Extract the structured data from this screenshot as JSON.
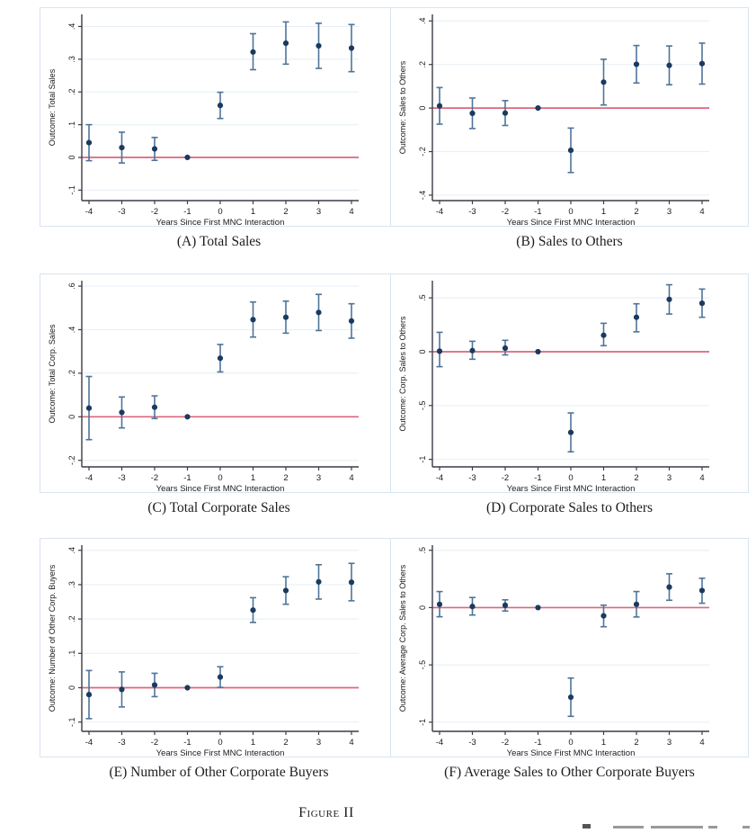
{
  "figure": {
    "label": "Figure II"
  },
  "colors": {
    "marker": "#1b3a5f",
    "ci_bar": "#4e7499",
    "zero_refline": "#d8687c",
    "gridline": "#e9f1f6",
    "panel_border": "#d9e4ef",
    "axis": "#3c3c46",
    "text": "#1a1a1a"
  },
  "chart_data": [
    {
      "id": "A",
      "type": "scatter",
      "caption": "(A) Total Sales",
      "ylabel": "Outcome: Total Sales",
      "xlabel": "Years Since First MNC Interaction",
      "grid": true,
      "legend": "none",
      "x": [
        -4,
        -3,
        -2,
        -1,
        0,
        1,
        2,
        3,
        4
      ],
      "xtick_labels": [
        "-4",
        "-3",
        "-2",
        "-1",
        "0",
        "1",
        "2",
        "3",
        "4"
      ],
      "estimates": [
        0.045,
        0.03,
        0.026,
        0,
        0.159,
        0.322,
        0.349,
        0.341,
        0.334
      ],
      "ci_low": [
        -0.01,
        -0.017,
        -0.009,
        0,
        0.119,
        0.268,
        0.285,
        0.272,
        0.262
      ],
      "ci_high": [
        0.1,
        0.077,
        0.061,
        0,
        0.199,
        0.378,
        0.414,
        0.41,
        0.406
      ],
      "omitted_period": -1,
      "refline_y": 0,
      "yticks": [
        -0.1,
        0,
        0.1,
        0.2,
        0.3,
        0.4
      ],
      "ytick_labels": [
        "-.1",
        "0",
        ".1",
        ".2",
        ".3",
        ".4"
      ],
      "ylim": [
        -0.132,
        0.437
      ]
    },
    {
      "id": "B",
      "type": "scatter",
      "caption": "(B) Sales to Others",
      "ylabel": "Outcome: Sales to Others",
      "xlabel": "Years Since First MNC Interaction",
      "grid": true,
      "legend": "none",
      "x": [
        -4,
        -3,
        -2,
        -1,
        0,
        1,
        2,
        3,
        4
      ],
      "xtick_labels": [
        "-4",
        "-3",
        "-2",
        "-1",
        "0",
        "1",
        "2",
        "3",
        "4"
      ],
      "estimates": [
        0.01,
        -0.024,
        -0.023,
        0,
        -0.194,
        0.119,
        0.201,
        0.196,
        0.204
      ],
      "ci_low": [
        -0.074,
        -0.094,
        -0.08,
        0,
        -0.296,
        0.014,
        0.115,
        0.107,
        0.11
      ],
      "ci_high": [
        0.094,
        0.046,
        0.034,
        0,
        -0.092,
        0.224,
        0.287,
        0.285,
        0.298
      ],
      "omitted_period": -1,
      "refline_y": 0,
      "yticks": [
        -0.4,
        -0.2,
        0,
        0.2,
        0.4
      ],
      "ytick_labels": [
        "-.4",
        "-.2",
        "0",
        ".2",
        ".4"
      ],
      "ylim": [
        -0.425,
        0.43
      ]
    },
    {
      "id": "C",
      "type": "scatter",
      "caption": "(C) Total Corporate Sales",
      "ylabel": "Outcome: Total Corp. Sales",
      "xlabel": "Years Since First MNC Interaction",
      "grid": true,
      "legend": "none",
      "x": [
        -4,
        -3,
        -2,
        -1,
        0,
        1,
        2,
        3,
        4
      ],
      "xtick_labels": [
        "-4",
        "-3",
        "-2",
        "-1",
        "0",
        "1",
        "2",
        "3",
        "4"
      ],
      "estimates": [
        0.04,
        0.02,
        0.044,
        0,
        0.269,
        0.446,
        0.457,
        0.479,
        0.44
      ],
      "ci_low": [
        -0.105,
        -0.051,
        -0.008,
        0,
        0.206,
        0.366,
        0.384,
        0.396,
        0.361
      ],
      "ci_high": [
        0.185,
        0.091,
        0.096,
        0,
        0.332,
        0.527,
        0.531,
        0.562,
        0.519
      ],
      "omitted_period": -1,
      "refline_y": 0,
      "yticks": [
        -0.2,
        0,
        0.2,
        0.4,
        0.6
      ],
      "ytick_labels": [
        "-.2",
        "0",
        ".2",
        ".4",
        ".6"
      ],
      "ylim": [
        -0.23,
        0.625
      ]
    },
    {
      "id": "D",
      "type": "scatter",
      "caption": "(D) Corporate Sales to Others",
      "ylabel": "Outcome: Corp. Sales to Others",
      "xlabel": "Years Since First MNC Interaction",
      "grid": true,
      "legend": "none",
      "x": [
        -4,
        -3,
        -2,
        -1,
        0,
        1,
        2,
        3,
        4
      ],
      "xtick_labels": [
        "-4",
        "-3",
        "-2",
        "-1",
        "0",
        "1",
        "2",
        "3",
        "4"
      ],
      "estimates": [
        0.005,
        0.01,
        0.033,
        0,
        -0.75,
        0.153,
        0.32,
        0.486,
        0.45
      ],
      "ci_low": [
        -0.139,
        -0.07,
        -0.03,
        0,
        -0.93,
        0.056,
        0.185,
        0.35,
        0.32
      ],
      "ci_high": [
        0.18,
        0.097,
        0.106,
        0,
        -0.569,
        0.264,
        0.445,
        0.622,
        0.582
      ],
      "omitted_period": -1,
      "refline_y": 0,
      "yticks": [
        -1,
        -0.5,
        0,
        0.5
      ],
      "ytick_labels": [
        "-1",
        "-.5",
        "0",
        ".5"
      ],
      "ylim": [
        -1.07,
        0.66
      ]
    },
    {
      "id": "E",
      "type": "scatter",
      "caption": "(E) Number of Other Corporate Buyers",
      "ylabel": "Outcome: Number of Other Corp. Buyers",
      "xlabel": "Years Since First MNC Interaction",
      "grid": true,
      "legend": "none",
      "x": [
        -4,
        -3,
        -2,
        -1,
        0,
        1,
        2,
        3,
        4
      ],
      "xtick_labels": [
        "-4",
        "-3",
        "-2",
        "-1",
        "0",
        "1",
        "2",
        "3",
        "4"
      ],
      "estimates": [
        -0.02,
        -0.005,
        0.008,
        0,
        0.031,
        0.226,
        0.283,
        0.308,
        0.307
      ],
      "ci_low": [
        -0.09,
        -0.056,
        -0.026,
        0,
        0.001,
        0.19,
        0.243,
        0.258,
        0.253
      ],
      "ci_high": [
        0.05,
        0.046,
        0.042,
        0,
        0.061,
        0.262,
        0.323,
        0.358,
        0.362
      ],
      "omitted_period": -1,
      "refline_y": 0,
      "yticks": [
        -0.1,
        0,
        0.1,
        0.2,
        0.3,
        0.4
      ],
      "ytick_labels": [
        "-.1",
        "0",
        ".1",
        ".2",
        ".3",
        ".4"
      ],
      "ylim": [
        -0.127,
        0.415
      ]
    },
    {
      "id": "F",
      "type": "scatter",
      "caption": "(F) Average Sales to Other Corporate Buyers",
      "ylabel": "Outcome: Average Corp. Sales to Others",
      "xlabel": "Years Since First MNC Interaction",
      "grid": true,
      "legend": "none",
      "x": [
        -4,
        -3,
        -2,
        -1,
        0,
        1,
        2,
        3,
        4
      ],
      "xtick_labels": [
        "-4",
        "-3",
        "-2",
        "-1",
        "0",
        "1",
        "2",
        "3",
        "4"
      ],
      "estimates": [
        0.028,
        0.01,
        0.02,
        0,
        -0.782,
        -0.072,
        0.028,
        0.179,
        0.149
      ],
      "ci_low": [
        -0.08,
        -0.065,
        -0.03,
        0,
        -0.949,
        -0.167,
        -0.082,
        0.064,
        0.038
      ],
      "ci_high": [
        0.14,
        0.088,
        0.068,
        0,
        -0.615,
        0.021,
        0.14,
        0.295,
        0.256
      ],
      "omitted_period": -1,
      "refline_y": 0,
      "yticks": [
        -1,
        -0.5,
        0,
        0.5
      ],
      "ytick_labels": [
        "-1",
        "-.5",
        "0",
        ".5"
      ],
      "ylim": [
        -1.08,
        0.545
      ]
    }
  ]
}
